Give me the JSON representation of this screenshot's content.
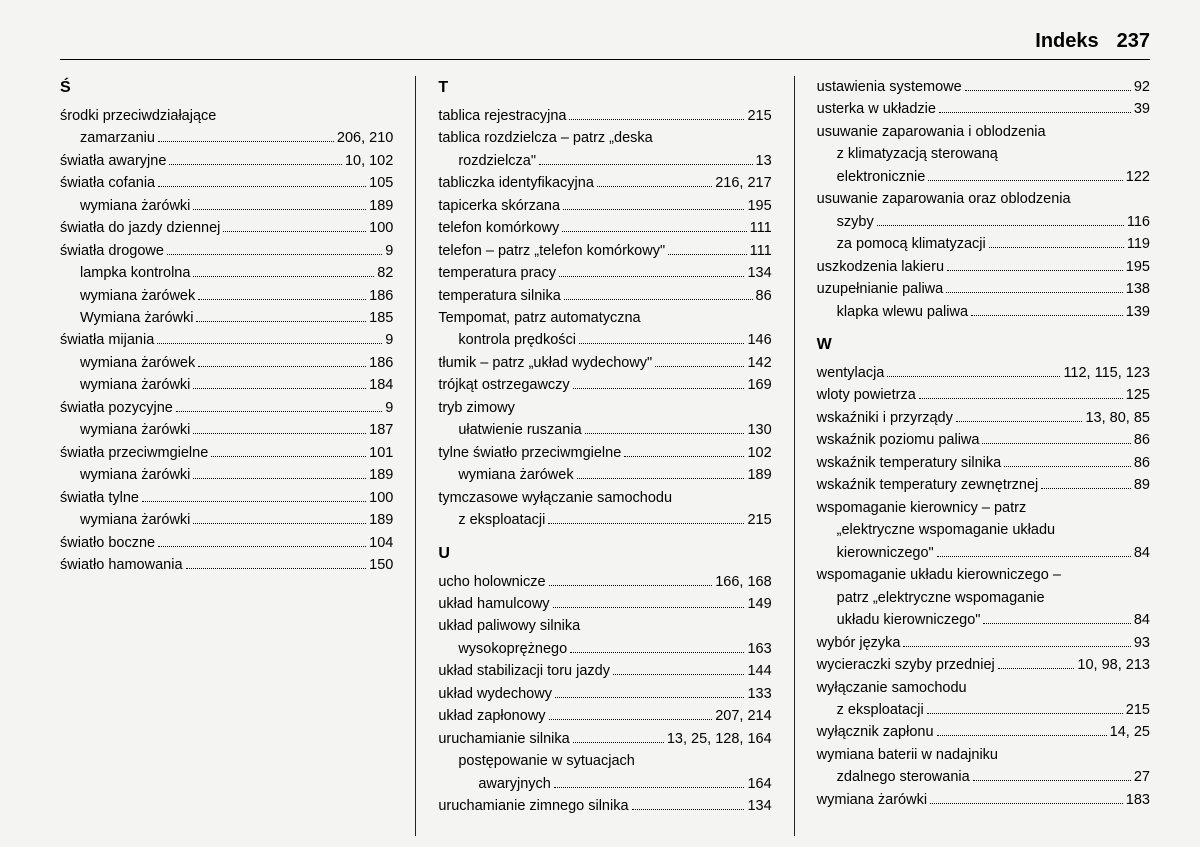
{
  "header": {
    "title": "Indeks",
    "page_number": "237"
  },
  "colors": {
    "bg": "#f4f4f2",
    "text": "#000000",
    "rule": "#000000"
  },
  "typography": {
    "body_size_pt": 11,
    "heading_size_pt": 15,
    "heading_weight": 700
  },
  "columns": [
    {
      "groups": [
        {
          "letter": "Ś",
          "items": [
            {
              "text": "środki przeciwdziałające",
              "pages": "",
              "noleader": true
            },
            {
              "text": "zamarzaniu",
              "pages": "206, 210",
              "sub": true
            },
            {
              "text": "światła awaryjne",
              "pages": "10, 102"
            },
            {
              "text": "światła cofania",
              "pages": "105"
            },
            {
              "text": "wymiana żarówki",
              "pages": "189",
              "sub": true
            },
            {
              "text": "światła do jazdy dziennej",
              "pages": "100"
            },
            {
              "text": "światła drogowe",
              "pages": "9"
            },
            {
              "text": "lampka kontrolna",
              "pages": "82",
              "sub": true
            },
            {
              "text": "wymiana żarówek",
              "pages": "186",
              "sub": true
            },
            {
              "text": "Wymiana żarówki",
              "pages": "185",
              "sub": true
            },
            {
              "text": "światła mijania",
              "pages": "9"
            },
            {
              "text": "wymiana żarówek",
              "pages": "186",
              "sub": true
            },
            {
              "text": "wymiana żarówki",
              "pages": "184",
              "sub": true
            },
            {
              "text": "światła pozycyjne",
              "pages": "9"
            },
            {
              "text": "wymiana żarówki",
              "pages": "187",
              "sub": true
            },
            {
              "text": "światła przeciwmgielne",
              "pages": "101"
            },
            {
              "text": "wymiana żarówki",
              "pages": "189",
              "sub": true
            },
            {
              "text": "światła tylne",
              "pages": "100"
            },
            {
              "text": "wymiana żarówki",
              "pages": "189",
              "sub": true
            },
            {
              "text": "światło boczne",
              "pages": "104"
            },
            {
              "text": "światło hamowania",
              "pages": "150"
            }
          ]
        }
      ]
    },
    {
      "groups": [
        {
          "letter": "T",
          "items": [
            {
              "text": "tablica rejestracyjna",
              "pages": "215"
            },
            {
              "text": "tablica rozdzielcza – patrz „deska",
              "pages": "",
              "noleader": true
            },
            {
              "text": "rozdzielcza\"",
              "pages": "13",
              "sub": true
            },
            {
              "text": "tabliczka identyfikacyjna",
              "pages": "216, 217"
            },
            {
              "text": "tapicerka skórzana",
              "pages": "195"
            },
            {
              "text": "telefon komórkowy",
              "pages": "111"
            },
            {
              "text": "telefon – patrz „telefon komórkowy\"",
              "pages": "111"
            },
            {
              "text": "temperatura pracy",
              "pages": "134"
            },
            {
              "text": "temperatura silnika",
              "pages": "86"
            },
            {
              "text": "Tempomat, patrz automatyczna",
              "pages": "",
              "noleader": true
            },
            {
              "text": "kontrola prędkości",
              "pages": "146",
              "sub": true
            },
            {
              "text": "tłumik – patrz „układ wydechowy\"",
              "pages": "142"
            },
            {
              "text": "trójkąt ostrzegawczy",
              "pages": "169"
            },
            {
              "text": "tryb zimowy",
              "pages": "",
              "noleader": true
            },
            {
              "text": "ułatwienie ruszania",
              "pages": "130",
              "sub": true
            },
            {
              "text": "tylne światło przeciwmgielne",
              "pages": "102"
            },
            {
              "text": "wymiana żarówek",
              "pages": "189",
              "sub": true
            },
            {
              "text": "tymczasowe wyłączanie samochodu",
              "pages": "",
              "noleader": true
            },
            {
              "text": "z eksploatacji",
              "pages": "215",
              "sub": true
            }
          ]
        },
        {
          "letter": "U",
          "items": [
            {
              "text": "ucho holownicze",
              "pages": "166, 168"
            },
            {
              "text": "układ hamulcowy",
              "pages": "149"
            },
            {
              "text": "układ paliwowy silnika",
              "pages": "",
              "noleader": true
            },
            {
              "text": "wysokoprężnego",
              "pages": "163",
              "sub": true
            },
            {
              "text": "układ stabilizacji toru jazdy",
              "pages": "144"
            },
            {
              "text": "układ wydechowy",
              "pages": "133"
            },
            {
              "text": "układ zapłonowy",
              "pages": "207, 214"
            },
            {
              "text": "uruchamianie silnika",
              "pages": "13, 25, 128, 164"
            },
            {
              "text": "postępowanie w sytuacjach",
              "pages": "",
              "sub": true,
              "noleader": true
            },
            {
              "text": "awaryjnych",
              "pages": "164",
              "sub": true,
              "sub2": true
            },
            {
              "text": "uruchamianie zimnego silnika",
              "pages": "134"
            }
          ]
        }
      ]
    },
    {
      "groups": [
        {
          "letter": "",
          "items": [
            {
              "text": "ustawienia systemowe",
              "pages": "92"
            },
            {
              "text": "usterka w układzie",
              "pages": "39"
            },
            {
              "text": "usuwanie zaparowania i oblodzenia",
              "pages": "",
              "noleader": true
            },
            {
              "text": "z klimatyzacją sterowaną",
              "pages": "",
              "sub": true,
              "noleader": true
            },
            {
              "text": "elektronicznie",
              "pages": "122",
              "sub": true
            },
            {
              "text": "usuwanie zaparowania oraz oblodzenia",
              "pages": "",
              "noleader": true
            },
            {
              "text": "szyby",
              "pages": "116",
              "sub": true
            },
            {
              "text": "za pomocą klimatyzacji",
              "pages": "119",
              "sub": true
            },
            {
              "text": "uszkodzenia lakieru",
              "pages": "195"
            },
            {
              "text": "uzupełnianie paliwa",
              "pages": "138"
            },
            {
              "text": "klapka wlewu paliwa",
              "pages": "139",
              "sub": true
            }
          ]
        },
        {
          "letter": "W",
          "items": [
            {
              "text": "wentylacja",
              "pages": "112, 115, 123"
            },
            {
              "text": "wloty powietrza",
              "pages": "125"
            },
            {
              "text": "wskaźniki i przyrządy",
              "pages": "13, 80, 85"
            },
            {
              "text": "wskaźnik poziomu paliwa",
              "pages": "86"
            },
            {
              "text": "wskaźnik temperatury silnika",
              "pages": "86"
            },
            {
              "text": "wskaźnik temperatury zewnętrznej",
              "pages": "89"
            },
            {
              "text": "wspomaganie kierownicy – patrz",
              "pages": "",
              "noleader": true
            },
            {
              "text": "„elektryczne wspomaganie układu",
              "pages": "",
              "sub": true,
              "noleader": true
            },
            {
              "text": "kierowniczego\"",
              "pages": "84",
              "sub": true
            },
            {
              "text": "wspomaganie układu kierowniczego –",
              "pages": "",
              "noleader": true
            },
            {
              "text": "patrz „elektryczne wspomaganie",
              "pages": "",
              "sub": true,
              "noleader": true
            },
            {
              "text": "układu kierowniczego\"",
              "pages": "84",
              "sub": true
            },
            {
              "text": "wybór języka",
              "pages": "93"
            },
            {
              "text": "wycieraczki szyby przedniej",
              "pages": "10, 98, 213"
            },
            {
              "text": "wyłączanie samochodu",
              "pages": "",
              "noleader": true
            },
            {
              "text": "z eksploatacji",
              "pages": "215",
              "sub": true
            },
            {
              "text": "wyłącznik zapłonu",
              "pages": "14, 25"
            },
            {
              "text": "wymiana baterii w nadajniku",
              "pages": "",
              "noleader": true
            },
            {
              "text": "zdalnego sterowania",
              "pages": "27",
              "sub": true
            },
            {
              "text": "wymiana żarówki",
              "pages": "183"
            }
          ]
        }
      ]
    }
  ]
}
